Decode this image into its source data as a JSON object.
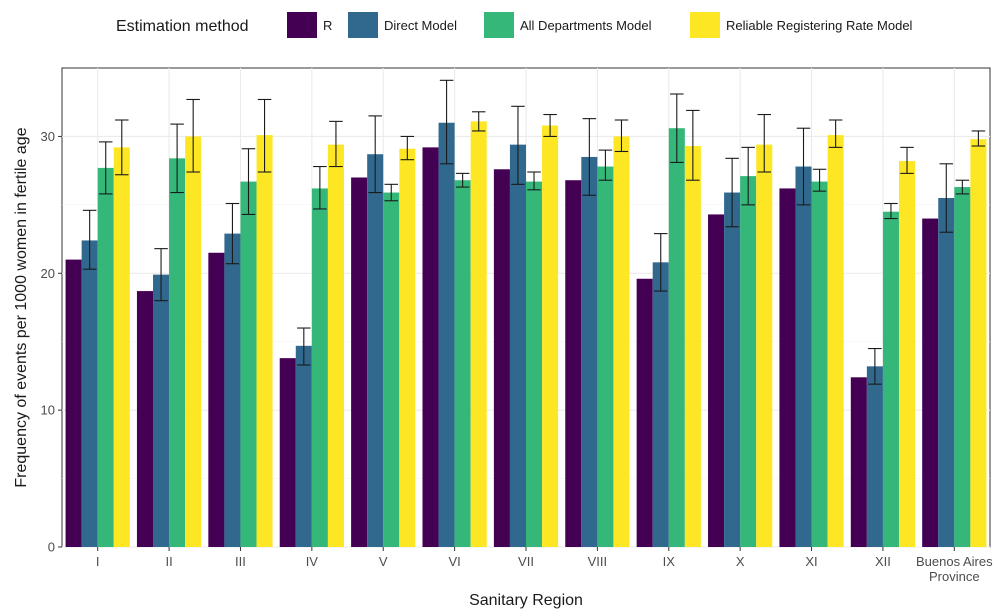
{
  "chart_data": {
    "type": "bar",
    "xlabel": "Sanitary Region",
    "ylabel": "Frequency of events per 1000 women in fertile age",
    "ylim": [
      0,
      35
    ],
    "yticks": [
      0,
      10,
      20,
      30
    ],
    "grid": true,
    "legend": {
      "title": "Estimation method",
      "placement": "top"
    },
    "categories": [
      "I",
      "II",
      "III",
      "IV",
      "V",
      "VI",
      "VII",
      "VIII",
      "IX",
      "X",
      "XI",
      "XII",
      "Buenos Aires Province"
    ],
    "series": [
      {
        "name": "R",
        "color": "#440154",
        "values": [
          21.0,
          18.7,
          21.5,
          13.8,
          27.0,
          29.2,
          27.6,
          26.8,
          19.6,
          24.3,
          26.2,
          12.4,
          24.0
        ],
        "errors": null
      },
      {
        "name": "Direct Model",
        "color": "#31688e",
        "values": [
          22.4,
          19.9,
          22.9,
          14.7,
          28.7,
          31.0,
          29.4,
          28.5,
          20.8,
          25.9,
          27.8,
          13.2,
          25.5
        ],
        "errors": [
          [
            20.3,
            24.6
          ],
          [
            18.0,
            21.8
          ],
          [
            20.7,
            25.1
          ],
          [
            13.3,
            16.0
          ],
          [
            25.9,
            31.5
          ],
          [
            28.0,
            34.1
          ],
          [
            26.5,
            32.2
          ],
          [
            25.7,
            31.3
          ],
          [
            18.7,
            22.9
          ],
          [
            23.4,
            28.4
          ],
          [
            25.0,
            30.6
          ],
          [
            11.9,
            14.5
          ],
          [
            23.0,
            28.0
          ]
        ]
      },
      {
        "name": "All Departments Model",
        "color": "#35b779",
        "values": [
          27.7,
          28.4,
          26.7,
          26.2,
          25.9,
          26.8,
          26.7,
          27.8,
          30.6,
          27.1,
          26.7,
          24.5,
          26.3
        ],
        "errors": [
          [
            25.8,
            29.6
          ],
          [
            25.9,
            30.9
          ],
          [
            24.3,
            29.1
          ],
          [
            24.7,
            27.8
          ],
          [
            25.3,
            26.5
          ],
          [
            26.3,
            27.3
          ],
          [
            26.1,
            27.4
          ],
          [
            26.8,
            29.0
          ],
          [
            28.1,
            33.1
          ],
          [
            25.0,
            29.2
          ],
          [
            26.0,
            27.6
          ],
          [
            24.0,
            25.1
          ],
          [
            25.8,
            26.8
          ]
        ]
      },
      {
        "name": "Reliable Registering Rate Model",
        "color": "#fde725",
        "values": [
          29.2,
          30.0,
          30.1,
          29.4,
          29.1,
          31.1,
          30.8,
          30.0,
          29.3,
          29.4,
          30.1,
          28.2,
          29.8
        ],
        "errors": [
          [
            27.2,
            31.2
          ],
          [
            27.4,
            32.7
          ],
          [
            27.4,
            32.7
          ],
          [
            27.8,
            31.1
          ],
          [
            28.3,
            30.0
          ],
          [
            30.4,
            31.8
          ],
          [
            30.0,
            31.6
          ],
          [
            28.9,
            31.2
          ],
          [
            26.8,
            31.9
          ],
          [
            27.4,
            31.6
          ],
          [
            29.2,
            31.2
          ],
          [
            27.3,
            29.2
          ],
          [
            29.3,
            30.4
          ]
        ]
      }
    ]
  }
}
